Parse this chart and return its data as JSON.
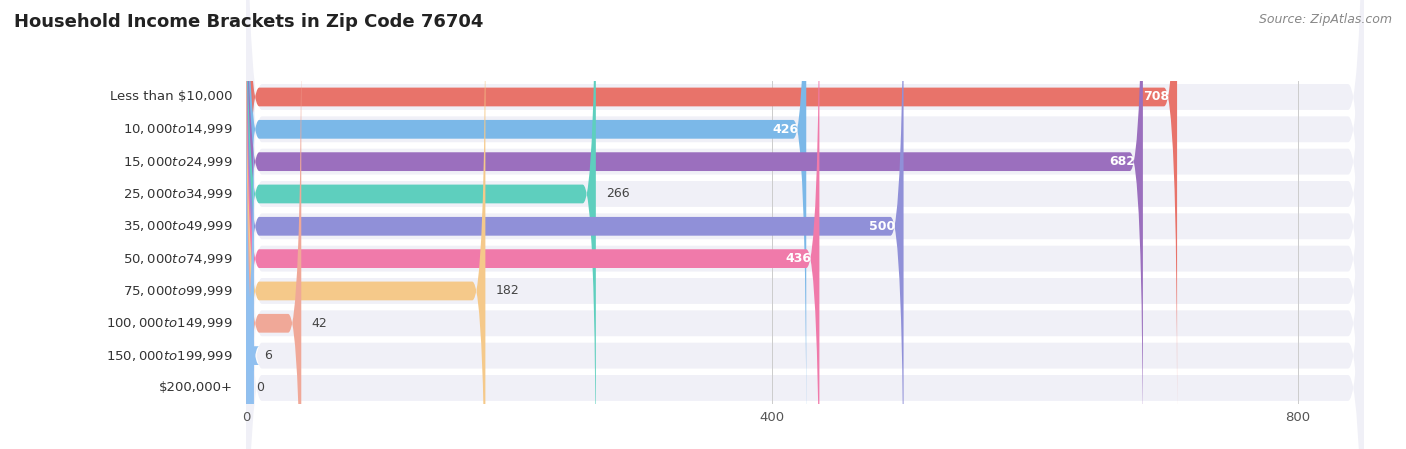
{
  "title": "Household Income Brackets in Zip Code 76704",
  "source": "Source: ZipAtlas.com",
  "categories": [
    "Less than $10,000",
    "$10,000 to $14,999",
    "$15,000 to $24,999",
    "$25,000 to $34,999",
    "$35,000 to $49,999",
    "$50,000 to $74,999",
    "$75,000 to $99,999",
    "$100,000 to $149,999",
    "$150,000 to $199,999",
    "$200,000+"
  ],
  "values": [
    708,
    426,
    682,
    266,
    500,
    436,
    182,
    42,
    6,
    0
  ],
  "bar_colors": [
    "#E8736A",
    "#7BB8E8",
    "#9B6FBE",
    "#5ECFBE",
    "#9090D8",
    "#F07AAA",
    "#F5C98A",
    "#F0A898",
    "#90C0F0",
    "#D0B8D8"
  ],
  "row_bg_color": "#F0F0F7",
  "background_color": "#FFFFFF",
  "xlim": [
    0,
    850
  ],
  "xticks": [
    0,
    400,
    800
  ],
  "title_fontsize": 13,
  "label_fontsize": 9.5,
  "value_fontsize": 9,
  "source_fontsize": 9,
  "inside_label_threshold": 400
}
